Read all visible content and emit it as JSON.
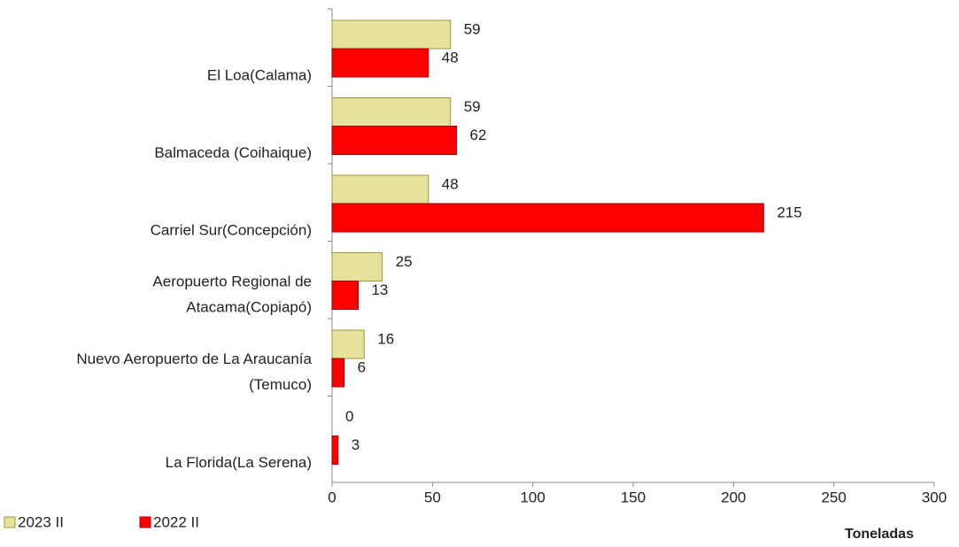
{
  "chart_data": {
    "type": "bar",
    "orientation": "horizontal",
    "x_label": "Toneladas",
    "categories": [
      "El Loa(Calama)",
      "Balmaceda (Coihaique)",
      "Carriel Sur(Concepción)",
      "Aeropuerto Regional de\nAtacama(Copiapó)",
      "Nuevo Aeropuerto de La Araucanía\n(Temuco)",
      "La Florida(La Serena)"
    ],
    "series": [
      {
        "name": "2023 II",
        "color": "#e6e29c",
        "values": [
          59,
          59,
          48,
          25,
          16,
          0
        ]
      },
      {
        "name": "2022 II",
        "color": "#ff0000",
        "values": [
          48,
          62,
          215,
          13,
          6,
          3
        ]
      }
    ],
    "xlim": [
      0,
      300
    ],
    "xticks": [
      0,
      50,
      100,
      150,
      200,
      250,
      300
    ],
    "legend": "bottom-left",
    "grid": false
  }
}
